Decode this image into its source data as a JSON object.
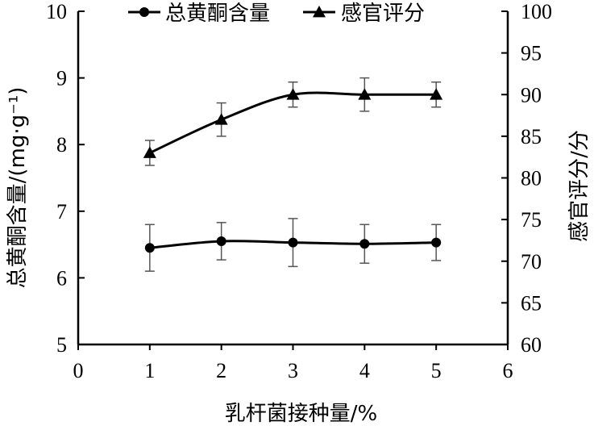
{
  "chart_data": {
    "type": "line",
    "title": "",
    "xlabel": "乳杆菌接种量/%",
    "ylabel_left": "总黄酮含量/(mg·g⁻¹)",
    "ylabel_right": "感官评分/分",
    "x_ticks": [
      "0",
      "1",
      "2",
      "3",
      "4",
      "5",
      "6"
    ],
    "y_left_ticks": [
      "5",
      "6",
      "7",
      "8",
      "9",
      "10"
    ],
    "y_right_ticks": [
      "60",
      "65",
      "70",
      "75",
      "80",
      "85",
      "90",
      "95",
      "100"
    ],
    "xlim": [
      0,
      6
    ],
    "ylim_left": [
      5,
      10
    ],
    "ylim_right": [
      60,
      100
    ],
    "grid": false,
    "legend_position": "top",
    "series": [
      {
        "name": "总黄酮含量",
        "axis": "left",
        "marker": "circle",
        "x": [
          1,
          2,
          3,
          4,
          5
        ],
        "values": [
          6.45,
          6.55,
          6.53,
          6.51,
          6.53
        ],
        "error": [
          0.35,
          0.28,
          0.36,
          0.29,
          0.27
        ]
      },
      {
        "name": "感官评分",
        "axis": "right",
        "marker": "triangle",
        "x": [
          1,
          2,
          3,
          4,
          5
        ],
        "values": [
          83,
          87,
          90,
          90,
          90
        ],
        "error": [
          1.5,
          2.0,
          1.5,
          2.0,
          1.5
        ]
      }
    ]
  }
}
